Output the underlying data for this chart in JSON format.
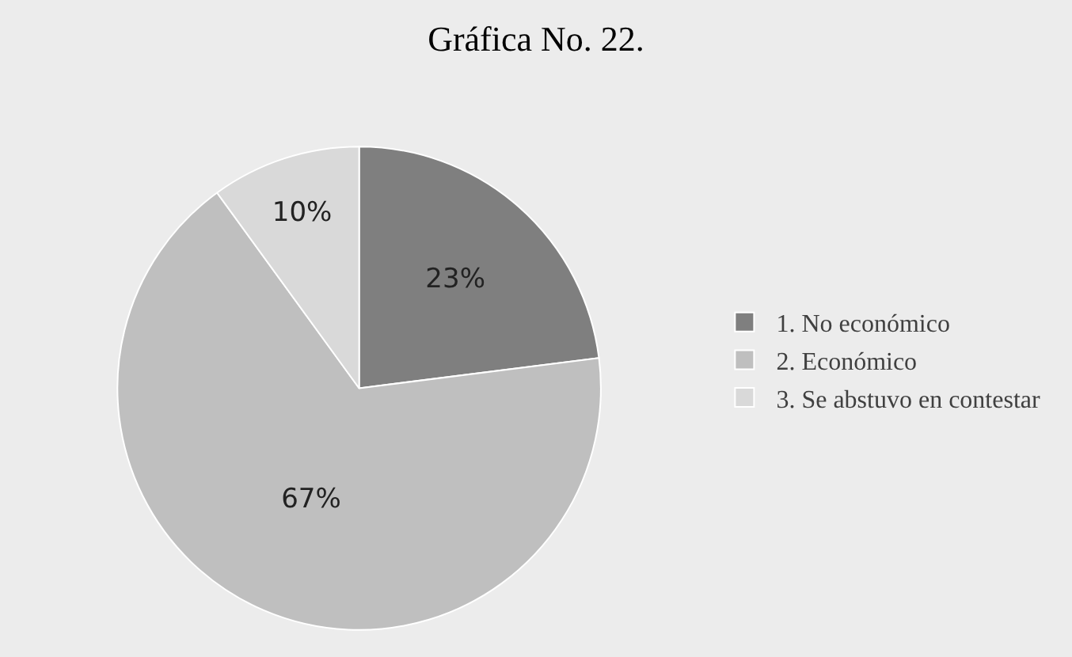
{
  "chart_data": {
    "type": "pie",
    "title": "Gráfica No. 22.",
    "categories": [
      "1. No económico",
      "2. Económico",
      "3. Se abstuvo en contestar"
    ],
    "values": [
      23,
      67,
      10
    ],
    "colors": [
      "#7f7f7f",
      "#bfbfbf",
      "#d9d9d9"
    ],
    "value_labels": [
      "23%",
      "67%",
      "10%"
    ],
    "legend": "right"
  }
}
